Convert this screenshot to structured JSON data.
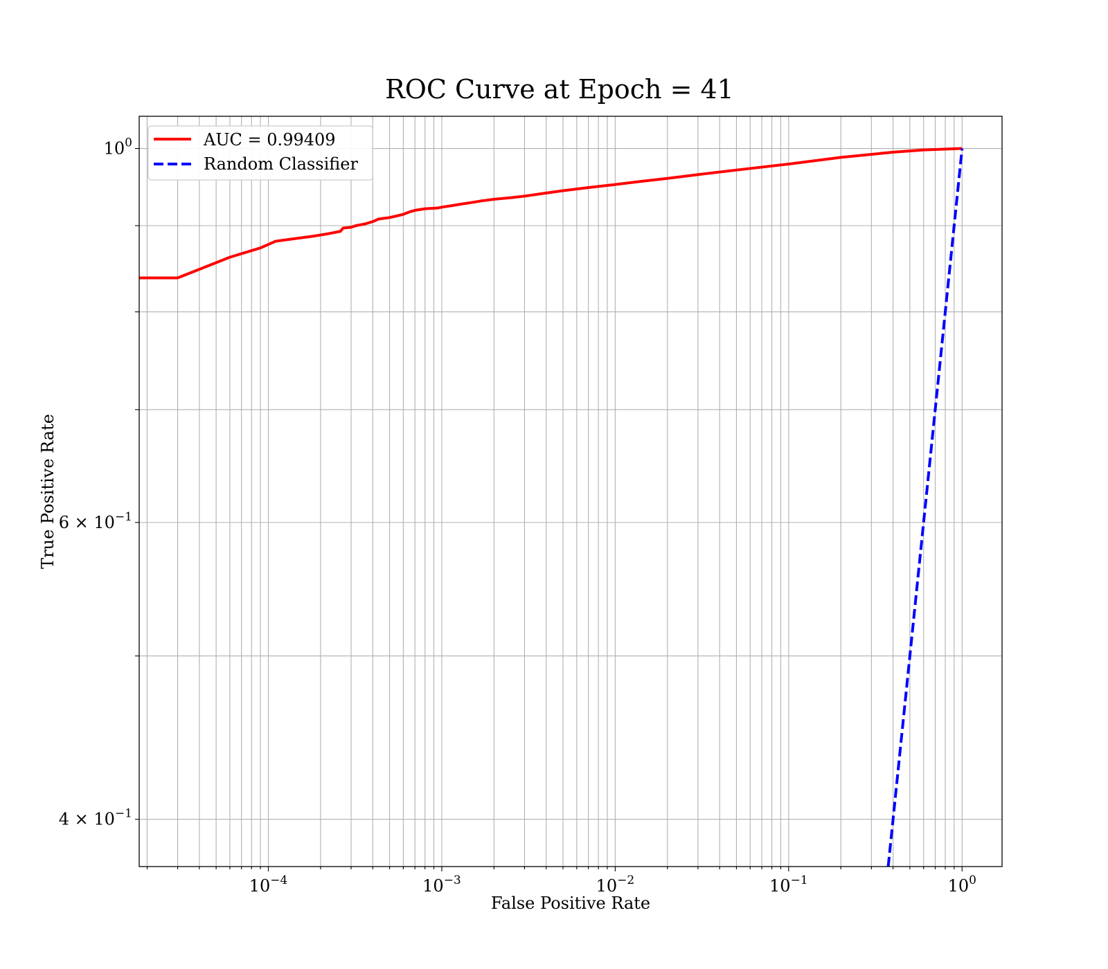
{
  "chart_data": {
    "type": "line",
    "title": "ROC Curve at Epoch = 41",
    "xlabel": "False Positive Rate",
    "ylabel": "True Positive Rate",
    "xscale": "log",
    "yscale": "log",
    "xlim": [
      1.8e-05,
      1.7
    ],
    "ylim": [
      0.375,
      1.045
    ],
    "grid": true,
    "grid_minor": true,
    "legend_position": "top-left",
    "x_ticks": [
      {
        "value": 0.0001,
        "base": "10",
        "exp": "−4"
      },
      {
        "value": 0.001,
        "base": "10",
        "exp": "−3"
      },
      {
        "value": 0.01,
        "base": "10",
        "exp": "−2"
      },
      {
        "value": 0.1,
        "base": "10",
        "exp": "−1"
      },
      {
        "value": 1,
        "base": "10",
        "exp": "0"
      }
    ],
    "y_ticks": [
      {
        "value": 1.0,
        "base": "10",
        "exp": "0"
      },
      {
        "value": 0.6,
        "base": "6 × 10",
        "exp": "−1"
      },
      {
        "value": 0.4,
        "base": "4 × 10",
        "exp": "−1"
      }
    ],
    "y_minor_ticks": [
      0.5,
      0.7,
      0.8,
      0.9
    ],
    "series": [
      {
        "name": "AUC = 0.99409",
        "color": "#ff0000",
        "style": "solid",
        "x": [
          1.8e-05,
          3e-05,
          6e-05,
          9e-05,
          0.00011,
          0.00014,
          0.00018,
          0.00022,
          0.00026,
          0.00027,
          0.0003,
          0.00032,
          0.00036,
          0.0004,
          0.00043,
          0.00046,
          0.0005,
          0.00055,
          0.0006,
          0.00065,
          0.0007,
          0.0008,
          0.00095,
          0.001,
          0.00115,
          0.0013,
          0.0015,
          0.0017,
          0.002,
          0.0025,
          0.003,
          0.004,
          0.005,
          0.007,
          0.01,
          0.014,
          0.02,
          0.03,
          0.05,
          0.1,
          0.2,
          0.4,
          0.6,
          1.0
        ],
        "y": [
          0.838,
          0.838,
          0.862,
          0.873,
          0.881,
          0.884,
          0.887,
          0.89,
          0.893,
          0.897,
          0.898,
          0.9,
          0.902,
          0.905,
          0.908,
          0.909,
          0.91,
          0.912,
          0.914,
          0.917,
          0.919,
          0.921,
          0.922,
          0.923,
          0.925,
          0.927,
          0.929,
          0.931,
          0.933,
          0.935,
          0.937,
          0.941,
          0.944,
          0.948,
          0.952,
          0.956,
          0.96,
          0.965,
          0.971,
          0.979,
          0.988,
          0.995,
          0.998,
          1.0
        ]
      },
      {
        "name": "Random Classifier",
        "color": "#0000ff",
        "style": "dashed",
        "x": [
          0.375,
          1.0
        ],
        "y": [
          0.375,
          1.0
        ]
      }
    ]
  }
}
